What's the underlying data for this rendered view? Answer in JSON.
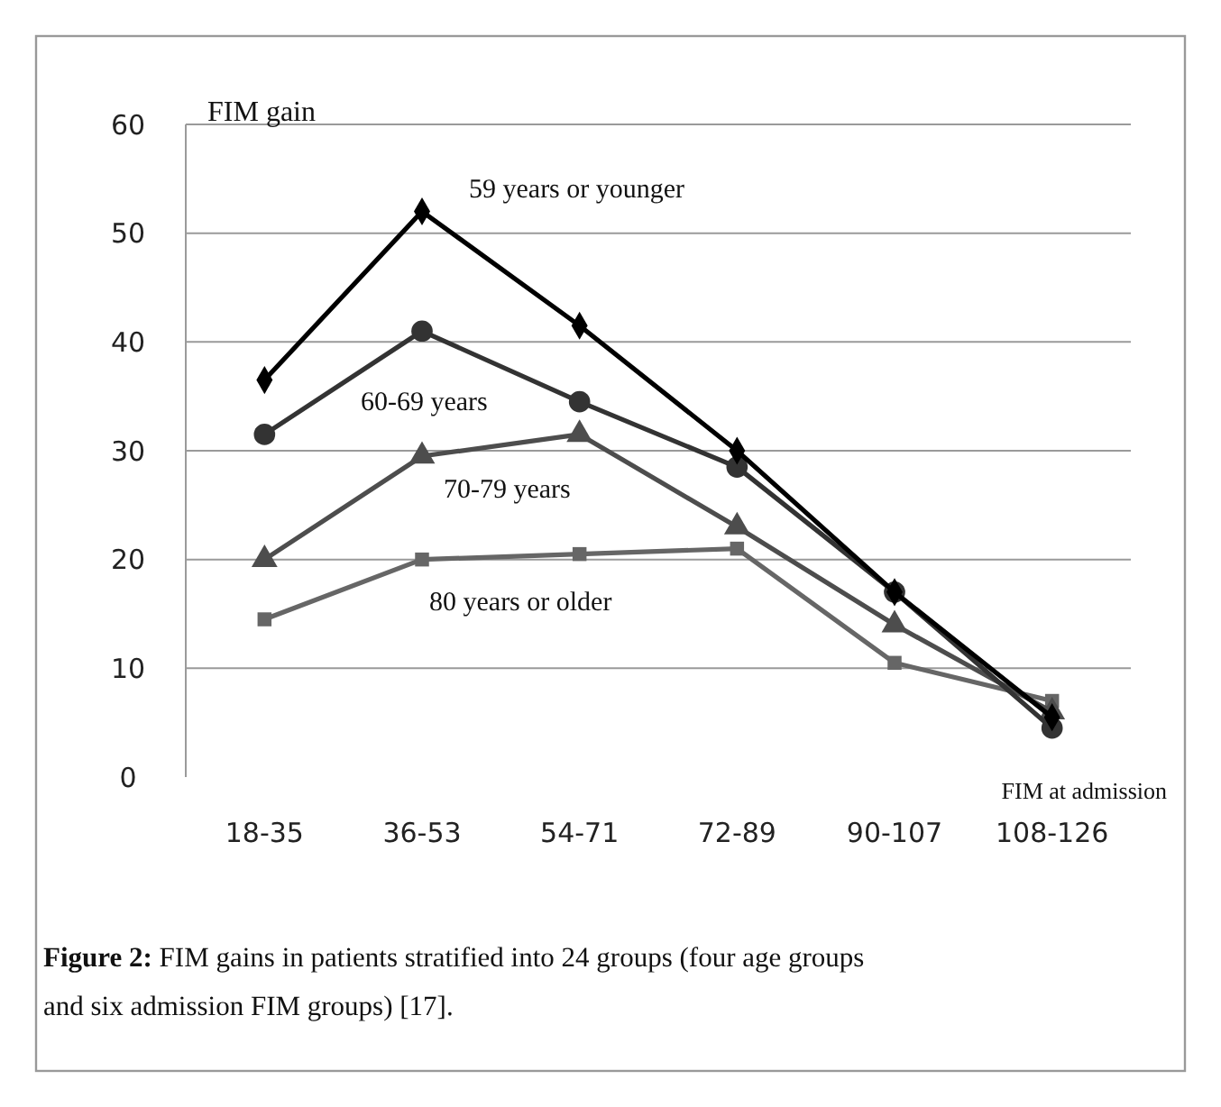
{
  "chart_data": {
    "type": "line",
    "ylabel": "FIM gain",
    "xlabel": "FIM at admission",
    "categories": [
      "18-35",
      "36-53",
      "54-71",
      "72-89",
      "90-107",
      "108-126"
    ],
    "series": [
      {
        "name": "59 years or younger",
        "color": "#000000",
        "marker": "diamond",
        "values": [
          36.5,
          52,
          41.5,
          30,
          17,
          5.5
        ]
      },
      {
        "name": "60-69 years",
        "color": "#333333",
        "marker": "circle",
        "values": [
          31.5,
          41,
          34.5,
          28.5,
          17,
          4.5
        ]
      },
      {
        "name": "70-79 years",
        "color": "#4d4d4d",
        "marker": "triangle",
        "values": [
          20,
          29.5,
          31.5,
          23,
          14,
          6
        ]
      },
      {
        "name": "80 years or older",
        "color": "#666666",
        "marker": "square",
        "values": [
          14.5,
          20,
          20.5,
          21,
          10.5,
          7
        ]
      }
    ],
    "ylim": [
      0,
      60
    ],
    "yticks": [
      0,
      10,
      20,
      30,
      40,
      50,
      60
    ],
    "grid": "y",
    "annotations": [
      "Figure 2: FIM gains in patients stratified into 24 groups (four age groups and six admission FIM groups) [17]."
    ]
  }
}
